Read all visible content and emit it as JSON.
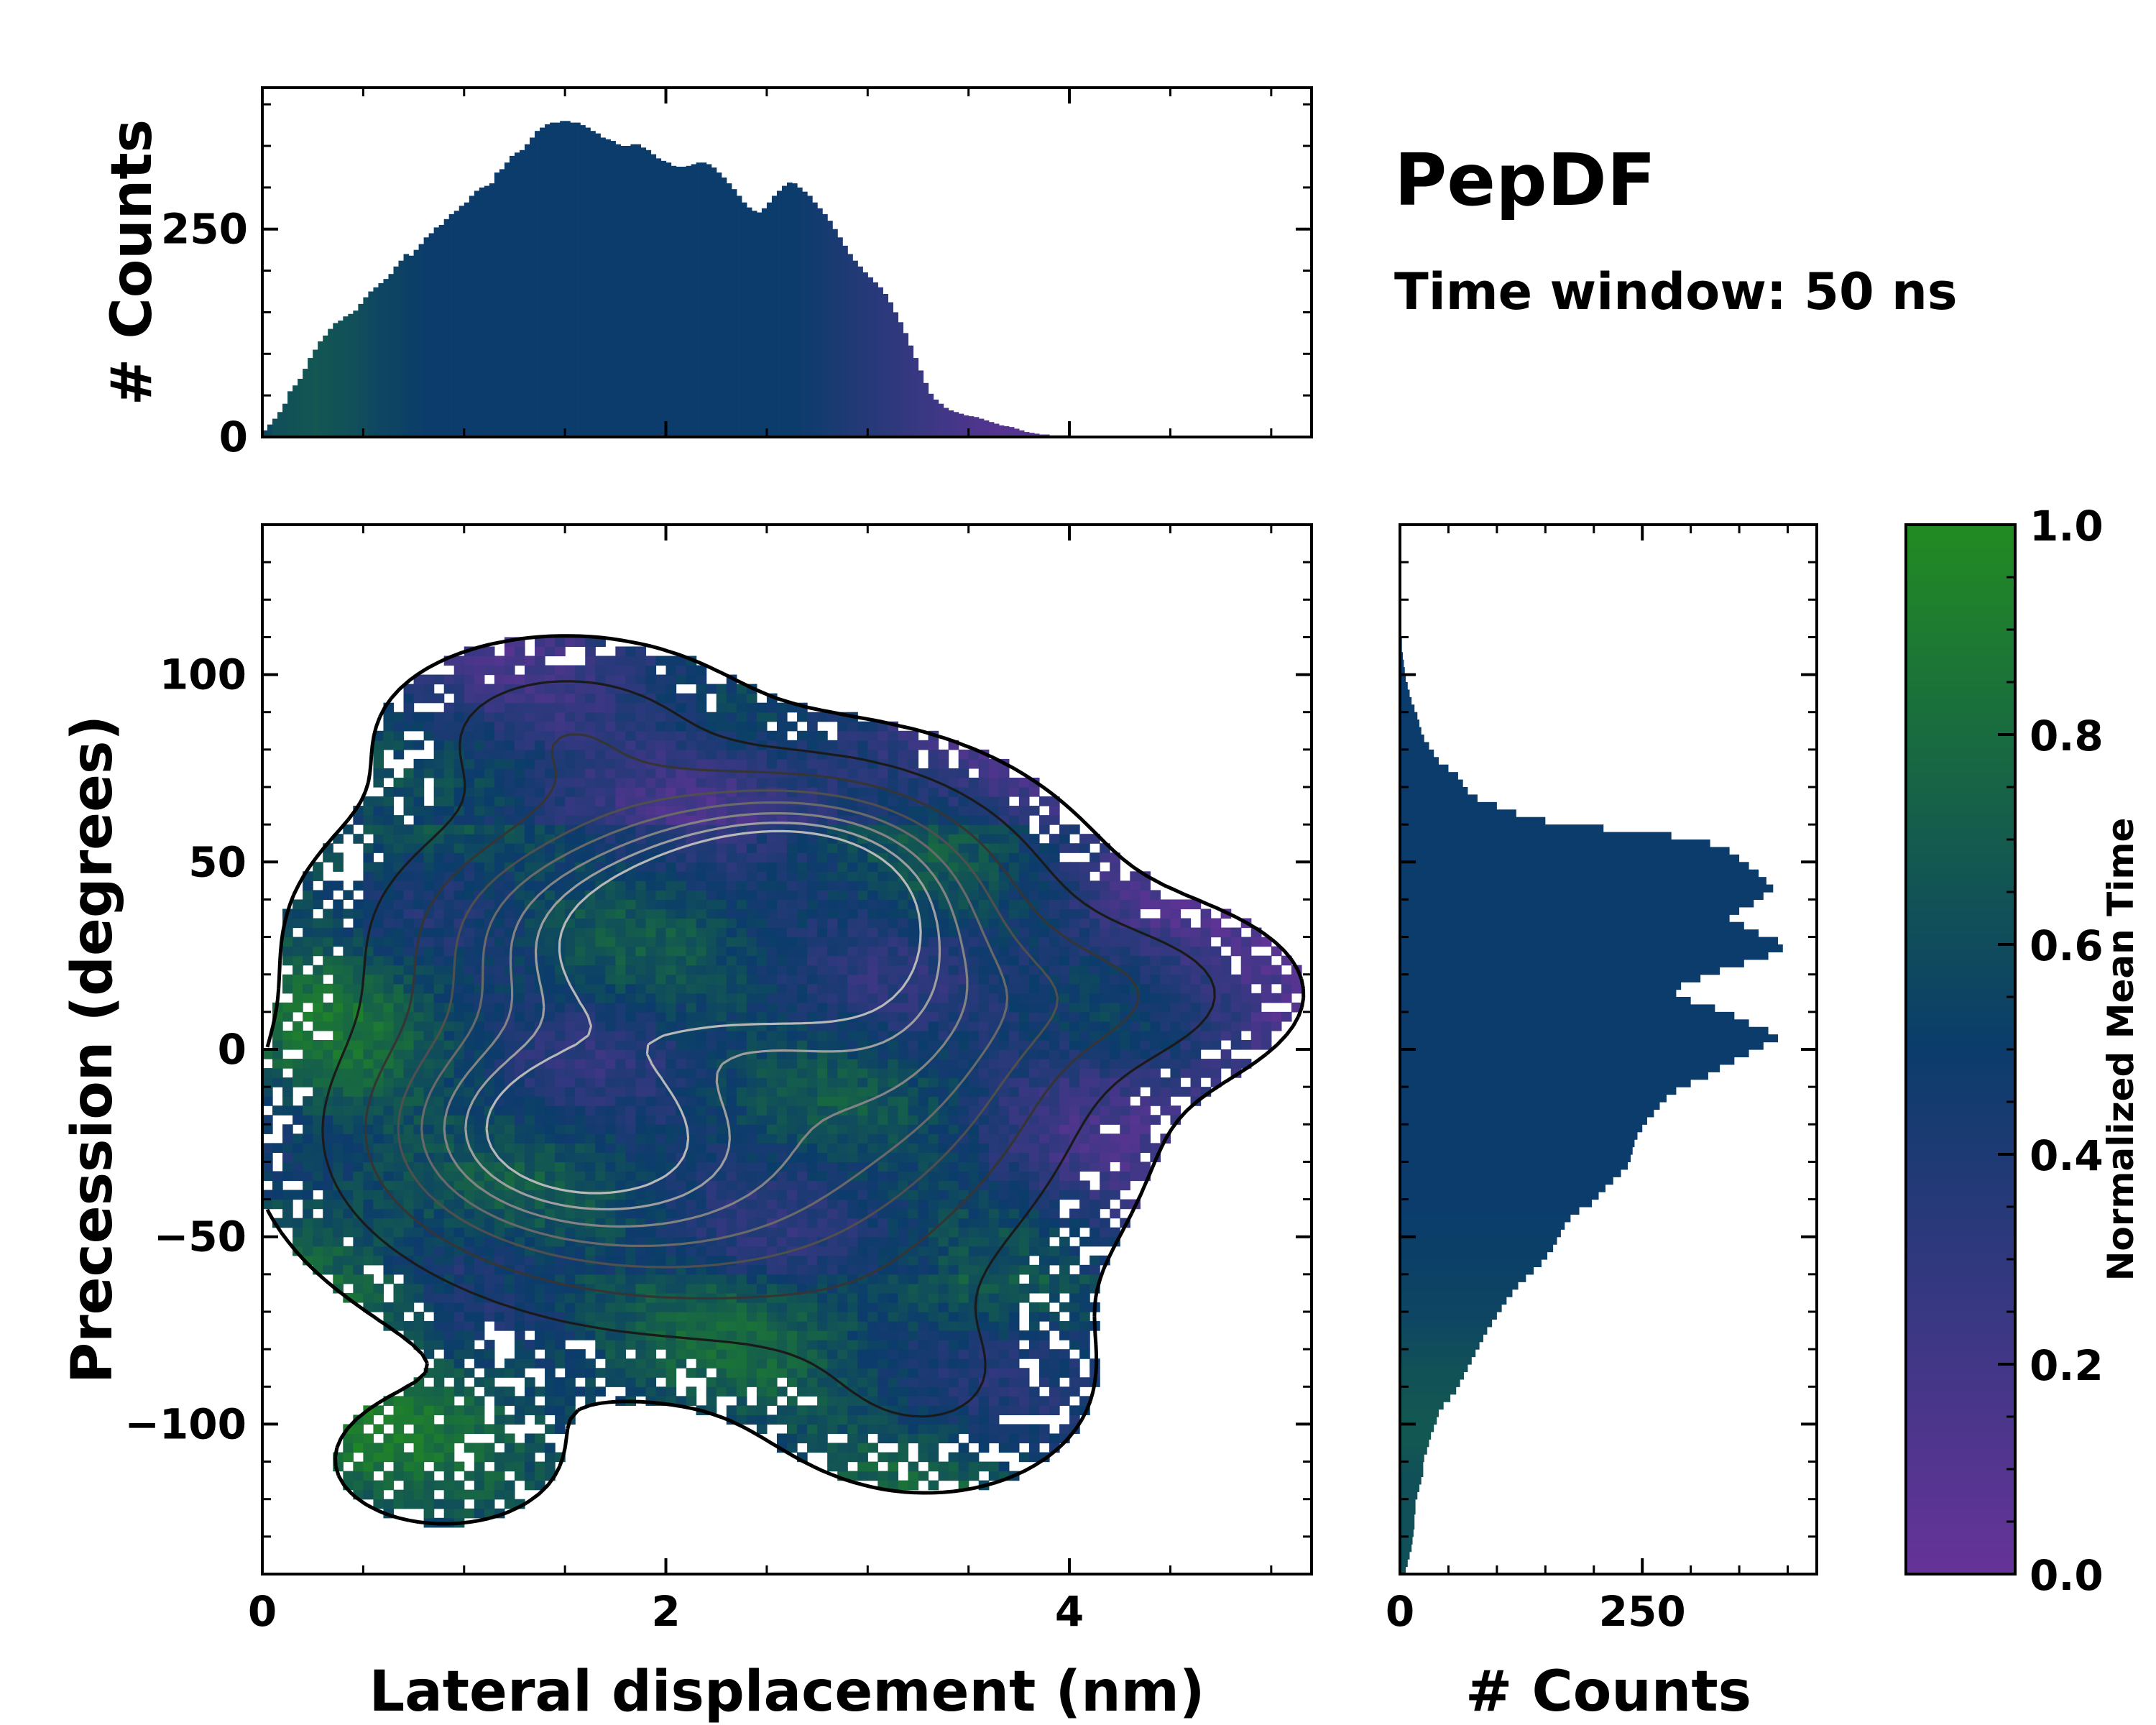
{
  "figure": {
    "title": "PepDF",
    "subtitle": "Time window: 50 ns"
  },
  "colors": {
    "cmap_low": "#663399",
    "cmap_mid": "#0b3c6b",
    "cmap_high": "#228b22",
    "contour_outer": "#000000",
    "contour_inner": "#b8b8b8"
  },
  "chart_data": [
    {
      "id": "joint",
      "type": "heatmap",
      "title": "",
      "xlabel": "Lateral displacement (nm)",
      "ylabel": "Precession (degrees)",
      "xlim": [
        0,
        5.2
      ],
      "ylim": [
        -140,
        140
      ],
      "xticks": [
        0,
        2,
        4
      ],
      "yticks": [
        -100,
        -50,
        0,
        50,
        100
      ],
      "xtick_labels": [
        "0",
        "2",
        "4"
      ],
      "ytick_labels": [
        "−100",
        "−50",
        "0",
        "50",
        "100"
      ],
      "color_meaning": "Normalized Mean Time",
      "density_blobs": [
        {
          "x": 1.9,
          "y": 30,
          "sx": 0.75,
          "sy": 22,
          "w": 1.0
        },
        {
          "x": 2.7,
          "y": 45,
          "sx": 0.55,
          "sy": 18,
          "w": 0.8
        },
        {
          "x": 1.4,
          "y": -20,
          "sx": 0.6,
          "sy": 20,
          "w": 0.8
        },
        {
          "x": 3.2,
          "y": 5,
          "sx": 0.6,
          "sy": 28,
          "w": 0.6
        },
        {
          "x": 2.2,
          "y": -40,
          "sx": 0.9,
          "sy": 25,
          "w": 0.55
        },
        {
          "x": 4.3,
          "y": 15,
          "sx": 0.5,
          "sy": 14,
          "w": 0.25
        },
        {
          "x": 0.9,
          "y": -110,
          "sx": 0.45,
          "sy": 14,
          "w": 0.12
        },
        {
          "x": 3.3,
          "y": -90,
          "sx": 0.5,
          "sy": 18,
          "w": 0.2
        },
        {
          "x": 1.5,
          "y": 85,
          "sx": 0.5,
          "sy": 14,
          "w": 0.3
        }
      ]
    },
    {
      "id": "top_hist",
      "type": "bar",
      "title": "",
      "xlabel": "",
      "ylabel": "# Counts",
      "xlim": [
        0,
        5.2
      ],
      "ylim": [
        0,
        420
      ],
      "yticks": [
        0,
        250
      ],
      "ytick_labels": [
        "0",
        "250"
      ],
      "bin_start": 0.0,
      "bin_width": 0.025,
      "values": [
        8,
        15,
        22,
        30,
        40,
        55,
        62,
        70,
        82,
        95,
        105,
        115,
        122,
        130,
        137,
        140,
        145,
        148,
        152,
        160,
        168,
        175,
        180,
        185,
        190,
        196,
        205,
        212,
        220,
        218,
        225,
        232,
        240,
        245,
        252,
        255,
        262,
        268,
        272,
        278,
        282,
        290,
        296,
        300,
        302,
        305,
        318,
        322,
        330,
        338,
        342,
        345,
        352,
        360,
        368,
        372,
        376,
        378,
        378,
        380,
        380,
        378,
        378,
        375,
        372,
        368,
        365,
        360,
        358,
        356,
        352,
        350,
        350,
        352,
        352,
        348,
        345,
        340,
        335,
        332,
        330,
        326,
        325,
        325,
        326,
        328,
        330,
        330,
        328,
        324,
        318,
        312,
        305,
        298,
        290,
        282,
        276,
        272,
        270,
        275,
        282,
        290,
        296,
        302,
        306,
        305,
        300,
        295,
        290,
        282,
        275,
        268,
        260,
        250,
        240,
        230,
        220,
        212,
        205,
        198,
        192,
        186,
        180,
        172,
        162,
        150,
        138,
        125,
        110,
        95,
        80,
        65,
        52,
        45,
        40,
        35,
        32,
        30,
        28,
        26,
        25,
        24,
        22,
        20,
        18,
        16,
        14,
        13,
        12,
        10,
        8,
        6,
        5,
        4,
        3,
        3,
        2,
        2,
        2,
        2,
        1,
        1,
        1,
        1,
        0,
        0,
        0,
        0,
        0,
        0,
        0
      ],
      "bar_time": [
        0.55,
        0.58,
        0.62,
        0.62,
        0.62,
        0.64,
        0.64,
        0.65,
        0.66,
        0.66,
        0.67,
        0.66,
        0.66,
        0.65,
        0.64,
        0.64,
        0.63,
        0.62,
        0.62,
        0.6,
        0.6,
        0.58,
        0.57,
        0.56,
        0.56,
        0.55,
        0.55,
        0.54,
        0.53,
        0.52,
        0.52,
        0.51,
        0.5,
        0.5,
        0.5,
        0.5,
        0.5,
        0.5,
        0.5,
        0.5,
        0.5,
        0.5,
        0.5,
        0.5,
        0.5,
        0.5,
        0.5,
        0.5,
        0.5,
        0.5,
        0.5,
        0.5,
        0.5,
        0.5,
        0.5,
        0.5,
        0.5,
        0.5,
        0.5,
        0.5,
        0.5,
        0.5,
        0.5,
        0.5,
        0.5,
        0.5,
        0.5,
        0.5,
        0.5,
        0.5,
        0.5,
        0.5,
        0.5,
        0.5,
        0.5,
        0.5,
        0.5,
        0.5,
        0.5,
        0.5,
        0.5,
        0.5,
        0.5,
        0.5,
        0.5,
        0.5,
        0.5,
        0.5,
        0.5,
        0.5,
        0.5,
        0.5,
        0.5,
        0.5,
        0.5,
        0.5,
        0.5,
        0.5,
        0.5,
        0.5,
        0.5,
        0.5,
        0.5,
        0.5,
        0.5,
        0.5,
        0.49,
        0.48,
        0.47,
        0.46,
        0.45,
        0.44,
        0.43,
        0.42,
        0.41,
        0.4,
        0.39,
        0.38,
        0.37,
        0.36,
        0.35,
        0.34,
        0.33,
        0.32,
        0.31,
        0.3,
        0.29,
        0.28,
        0.27,
        0.26,
        0.25,
        0.24,
        0.23,
        0.22,
        0.21,
        0.2,
        0.19,
        0.18,
        0.17,
        0.16,
        0.15,
        0.14,
        0.13,
        0.12,
        0.11,
        0.1,
        0.1,
        0.1,
        0.1,
        0.1,
        0.1,
        0.1,
        0.1,
        0.1,
        0.1,
        0.1,
        0.1,
        0.1,
        0.1,
        0.1,
        0.1,
        0.1,
        0.1,
        0.1,
        0.1,
        0.1
      ]
    },
    {
      "id": "right_hist",
      "type": "bar",
      "orientation": "horizontal",
      "title": "",
      "xlabel": "# Counts",
      "ylabel": "",
      "xlim": [
        0,
        430
      ],
      "ylim": [
        -140,
        140
      ],
      "xticks": [
        0,
        250
      ],
      "xtick_labels": [
        "0",
        "250"
      ],
      "bin_start": -140,
      "bin_width": 2,
      "values": [
        6,
        8,
        10,
        12,
        13,
        14,
        15,
        15,
        16,
        16,
        18,
        20,
        22,
        24,
        24,
        25,
        28,
        30,
        32,
        35,
        38,
        40,
        45,
        52,
        58,
        62,
        66,
        70,
        74,
        78,
        82,
        86,
        90,
        95,
        100,
        105,
        110,
        116,
        122,
        130,
        138,
        146,
        152,
        158,
        162,
        166,
        170,
        176,
        185,
        198,
        205,
        212,
        220,
        228,
        235,
        238,
        240,
        242,
        245,
        250,
        255,
        262,
        268,
        275,
        285,
        300,
        318,
        330,
        345,
        360,
        375,
        390,
        380,
        360,
        345,
        325,
        300,
        285,
        290,
        310,
        330,
        355,
        380,
        395,
        390,
        370,
        355,
        340,
        350,
        365,
        375,
        385,
        378,
        370,
        360,
        350,
        340,
        320,
        280,
        210,
        150,
        120,
        100,
        80,
        70,
        65,
        60,
        50,
        40,
        35,
        30,
        25,
        22,
        20,
        18,
        15,
        12,
        10,
        8,
        6,
        5,
        4,
        3,
        2,
        2,
        1,
        1,
        0,
        0,
        0,
        0,
        0,
        0,
        0,
        0,
        0,
        0,
        0,
        0,
        0
      ],
      "bar_time": [
        0.62,
        0.62,
        0.62,
        0.62,
        0.62,
        0.62,
        0.62,
        0.62,
        0.62,
        0.62,
        0.62,
        0.62,
        0.62,
        0.63,
        0.64,
        0.65,
        0.66,
        0.67,
        0.67,
        0.67,
        0.67,
        0.67,
        0.66,
        0.66,
        0.65,
        0.64,
        0.64,
        0.63,
        0.62,
        0.61,
        0.6,
        0.59,
        0.58,
        0.57,
        0.56,
        0.56,
        0.55,
        0.55,
        0.54,
        0.54,
        0.53,
        0.53,
        0.52,
        0.52,
        0.52,
        0.51,
        0.51,
        0.51,
        0.5,
        0.5,
        0.5,
        0.5,
        0.5,
        0.5,
        0.5,
        0.5,
        0.5,
        0.5,
        0.5,
        0.5,
        0.5,
        0.5,
        0.5,
        0.5,
        0.5,
        0.5,
        0.5,
        0.5,
        0.5,
        0.5,
        0.5,
        0.5,
        0.5,
        0.5,
        0.5,
        0.5,
        0.5,
        0.5,
        0.5,
        0.5,
        0.5,
        0.5,
        0.5,
        0.5,
        0.5,
        0.5,
        0.5,
        0.5,
        0.5,
        0.5,
        0.5,
        0.5,
        0.5,
        0.5,
        0.5,
        0.5,
        0.5,
        0.5,
        0.5,
        0.5,
        0.5,
        0.5,
        0.5,
        0.5,
        0.5,
        0.5,
        0.5,
        0.5,
        0.5,
        0.5,
        0.5,
        0.5,
        0.5,
        0.5,
        0.5,
        0.5,
        0.5,
        0.5,
        0.5,
        0.5,
        0.5,
        0.5,
        0.5,
        0.5,
        0.5,
        0.5,
        0.5,
        0.5,
        0.5,
        0.5,
        0.5,
        0.5,
        0.5,
        0.5,
        0.5,
        0.5,
        0.5,
        0.5,
        0.5,
        0.5
      ]
    },
    {
      "id": "colorbar",
      "type": "heatmap",
      "title": "",
      "label": "Normalized Mean Time",
      "ylim": [
        0.0,
        1.0
      ],
      "ticks": [
        0.0,
        0.2,
        0.4,
        0.6,
        0.8,
        1.0
      ],
      "tick_labels": [
        "0.0",
        "0.2",
        "0.4",
        "0.6",
        "0.8",
        "1.0"
      ]
    }
  ]
}
